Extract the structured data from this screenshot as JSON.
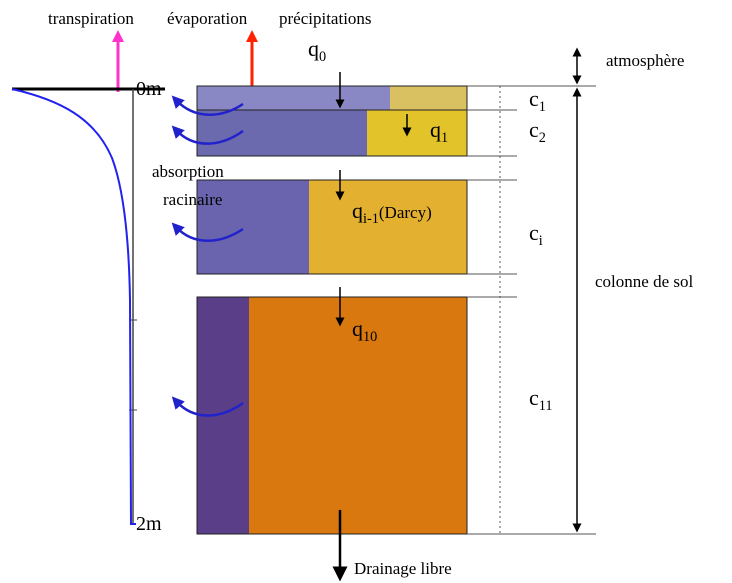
{
  "top_labels": {
    "transpiration": "transpiration",
    "evaporation": "évaporation",
    "precipitations": "précipitations"
  },
  "flux_labels": [
    {
      "base": "q",
      "sub": "0",
      "suffix": ""
    },
    {
      "base": "q",
      "sub": "1",
      "suffix": ""
    },
    {
      "base": "q",
      "sub": "i-1",
      "suffix": "(Darcy)"
    },
    {
      "base": "q",
      "sub": "10",
      "suffix": ""
    }
  ],
  "layer_labels": [
    {
      "base": "c",
      "sub": "1"
    },
    {
      "base": "c",
      "sub": "2"
    },
    {
      "base": "c",
      "sub": "i"
    },
    {
      "base": "c",
      "sub": "11"
    }
  ],
  "depth_labels": {
    "top": "0m",
    "bottom": "2m"
  },
  "absorption_label": {
    "line1": "absorption",
    "line2": "racinaire"
  },
  "right_labels": {
    "atmosphere": "atmosphère",
    "column": "colonne de sol"
  },
  "bottom_label": "Drainage libre",
  "colors": {
    "transpiration_arrow": "#ff33cc",
    "evaporation_arrow": "#ff2200",
    "root_curve": "#2222ee",
    "root_arrows": "#2222cc",
    "layer1_left": "#8a88c4",
    "layer1_right": "#d9c060",
    "layer2_left": "#6b6aae",
    "layer2_right": "#e2c32a",
    "layeri_left": "#6a64ae",
    "layeri_right": "#e3b030",
    "layer11_left": "#5a3f88",
    "layer11_right": "#d8780e"
  }
}
